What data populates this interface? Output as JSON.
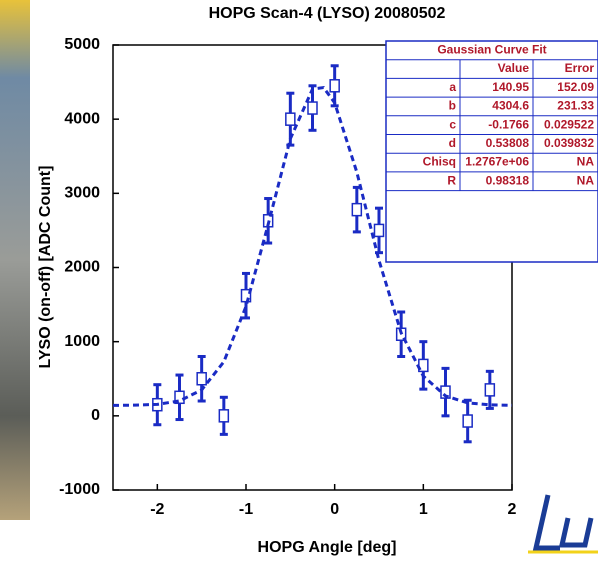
{
  "chart_data": {
    "type": "errorbar",
    "title": "HOPG Scan-4 (LYSO) 20080502",
    "x_label": "HOPG Angle [deg]",
    "y_label": "LYSO (on-off) [ADC Count]",
    "xlim": [
      -2.5,
      2
    ],
    "ylim": [
      -1000,
      5000
    ],
    "xticks": [
      -2,
      -1,
      0,
      1,
      2
    ],
    "yticks": [
      -1000,
      0,
      1000,
      2000,
      3000,
      4000,
      5000
    ],
    "series": [
      {
        "type": "errorbar",
        "color": "#1a2bc4",
        "x": [
          -2,
          -1.75,
          -1.5,
          -1.25,
          -1,
          -0.75,
          -0.5,
          -0.25,
          0,
          0.25,
          0.5,
          0.75,
          1,
          1.25,
          1.5,
          1.75
        ],
        "values": [
          150,
          250,
          500,
          0,
          1620,
          2630,
          4000,
          4150,
          4450,
          2780,
          2500,
          1100,
          680,
          320,
          -70,
          350
        ],
        "errors": [
          270,
          300,
          300,
          250,
          300,
          300,
          350,
          300,
          270,
          300,
          300,
          300,
          320,
          320,
          280,
          250
        ]
      },
      {
        "type": "line",
        "style": "dashed",
        "color": "#1a2bc4",
        "x": [
          -2.5,
          -2.25,
          -2,
          -1.75,
          -1.5,
          -1.25,
          -1,
          -0.75,
          -0.5,
          -0.25,
          -0.125,
          0,
          0.25,
          0.5,
          0.75,
          1,
          1.25,
          1.5,
          1.75,
          2
        ],
        "values": [
          141,
          144,
          155,
          201,
          350,
          729,
          1475,
          2581,
          3735,
          4406,
          4426,
          4220,
          3285,
          2094,
          1118,
          535,
          269,
          174,
          148,
          142
        ]
      }
    ]
  },
  "fit_table": {
    "title": "Gaussian Curve Fit",
    "columns": [
      "Value",
      "Error"
    ],
    "rows": [
      [
        "a",
        "140.95",
        "152.09"
      ],
      [
        "b",
        "4304.6",
        "231.33"
      ],
      [
        "c",
        "-0.1766",
        "0.029522"
      ],
      [
        "d",
        "0.53808",
        "0.039832"
      ],
      [
        "Chisq",
        "1.2767e+06",
        "NA"
      ],
      [
        "R",
        "0.98318",
        "NA"
      ]
    ]
  }
}
